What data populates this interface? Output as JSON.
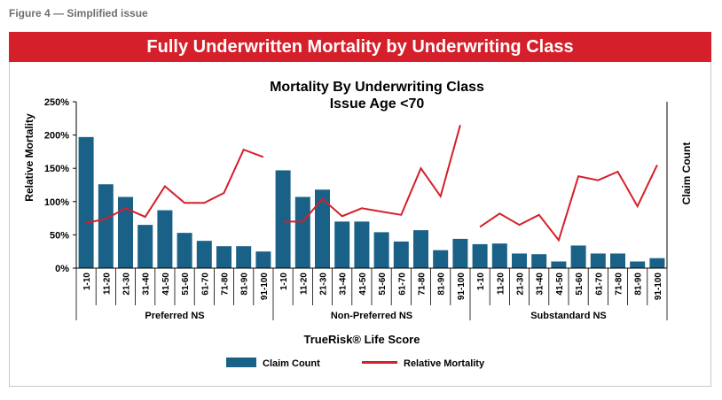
{
  "figure_label": "Figure 4 — Simplified issue",
  "banner_title": "Fully Underwritten Mortality by Underwriting Class",
  "colors": {
    "banner": "#d51f2a",
    "bar": "#1a6187",
    "line": "#d51f2a"
  },
  "chart_data": {
    "type": "bar",
    "title": "Mortality By Underwriting Class",
    "subtitle": "Issue Age <70",
    "xlabel": "TrueRisk® Life Score",
    "ylabel": "Relative Mortality",
    "y2label": "Claim Count",
    "ylim": [
      0,
      250
    ],
    "yticks": [
      "0%",
      "50%",
      "100%",
      "150%",
      "200%",
      "250%"
    ],
    "groups": [
      "Preferred NS",
      "Non-Preferred NS",
      "Substandard NS"
    ],
    "categories": [
      "1-10",
      "11-20",
      "21-30",
      "31-40",
      "41-50",
      "51-60",
      "61-70",
      "71-80",
      "81-90",
      "91-100"
    ],
    "legend": {
      "placement": "bottom",
      "bar_label": "Claim Count",
      "line_label": "Relative Mortality"
    },
    "series": [
      {
        "name": "Claim Count",
        "kind": "bar",
        "values": [
          [
            197,
            126,
            107,
            65,
            87,
            53,
            41,
            33,
            33,
            25
          ],
          [
            147,
            107,
            118,
            70,
            70,
            54,
            40,
            57,
            27,
            44
          ],
          [
            36,
            37,
            22,
            21,
            10,
            34,
            22,
            22,
            10,
            15
          ]
        ]
      },
      {
        "name": "Relative Mortality",
        "kind": "line",
        "values": [
          [
            68,
            74,
            90,
            77,
            123,
            98,
            98,
            113,
            178,
            167
          ],
          [
            70,
            70,
            104,
            78,
            90,
            85,
            80,
            150,
            108,
            215
          ],
          [
            62,
            82,
            65,
            80,
            42,
            138,
            132,
            145,
            93,
            155
          ]
        ]
      }
    ]
  }
}
